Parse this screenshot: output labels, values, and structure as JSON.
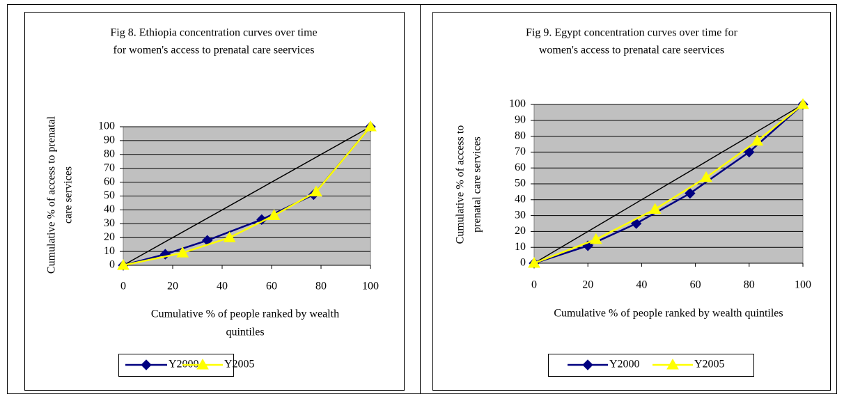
{
  "chart_data": [
    {
      "type": "line",
      "title": [
        "Fig 8. Ethiopia concentration curves over time",
        "for women's access to prenatal care seervices"
      ],
      "y_label": [
        "Cumulative % of access to prenatal",
        "care services"
      ],
      "x_label": [
        "Cumulative % of people ranked by wealth",
        "quintiles"
      ],
      "xlim": [
        0,
        100
      ],
      "ylim": [
        0,
        100
      ],
      "xticks": [
        0,
        20,
        40,
        60,
        80,
        100
      ],
      "yticks": [
        0,
        10,
        20,
        30,
        40,
        50,
        60,
        70,
        80,
        90,
        100
      ],
      "grid": true,
      "series": [
        {
          "name": "Y2000",
          "color": "#000080",
          "marker": "diamond",
          "x": [
            0,
            17,
            34,
            56,
            77,
            100
          ],
          "values": [
            0,
            8,
            18,
            33,
            51,
            100
          ]
        },
        {
          "name": "Y2005",
          "color": "#ffff00",
          "marker": "triangle",
          "x": [
            0,
            24,
            43,
            61,
            78,
            100
          ],
          "values": [
            0,
            9,
            20,
            36,
            53,
            100
          ]
        }
      ]
    },
    {
      "type": "line",
      "title": [
        "Fig 9. Egypt concentration curves over time for",
        "women's access to prenatal care seervices"
      ],
      "y_label": [
        "Cumulative % of access to",
        "prenatal care services"
      ],
      "x_label": [
        "Cumulative % of people ranked by wealth quintiles"
      ],
      "xlim": [
        0,
        100
      ],
      "ylim": [
        0,
        100
      ],
      "xticks": [
        0,
        20,
        40,
        60,
        80,
        100
      ],
      "yticks": [
        0,
        10,
        20,
        30,
        40,
        50,
        60,
        70,
        80,
        90,
        100
      ],
      "grid": true,
      "series": [
        {
          "name": "Y2000",
          "color": "#000080",
          "marker": "diamond",
          "x": [
            0,
            20,
            38,
            58,
            80,
            100
          ],
          "values": [
            0,
            11,
            25,
            44,
            70,
            100
          ]
        },
        {
          "name": "Y2005",
          "color": "#ffff00",
          "marker": "triangle",
          "x": [
            0,
            23,
            45,
            64,
            83,
            100
          ],
          "values": [
            0,
            15,
            34,
            54,
            77,
            100
          ]
        }
      ]
    }
  ]
}
